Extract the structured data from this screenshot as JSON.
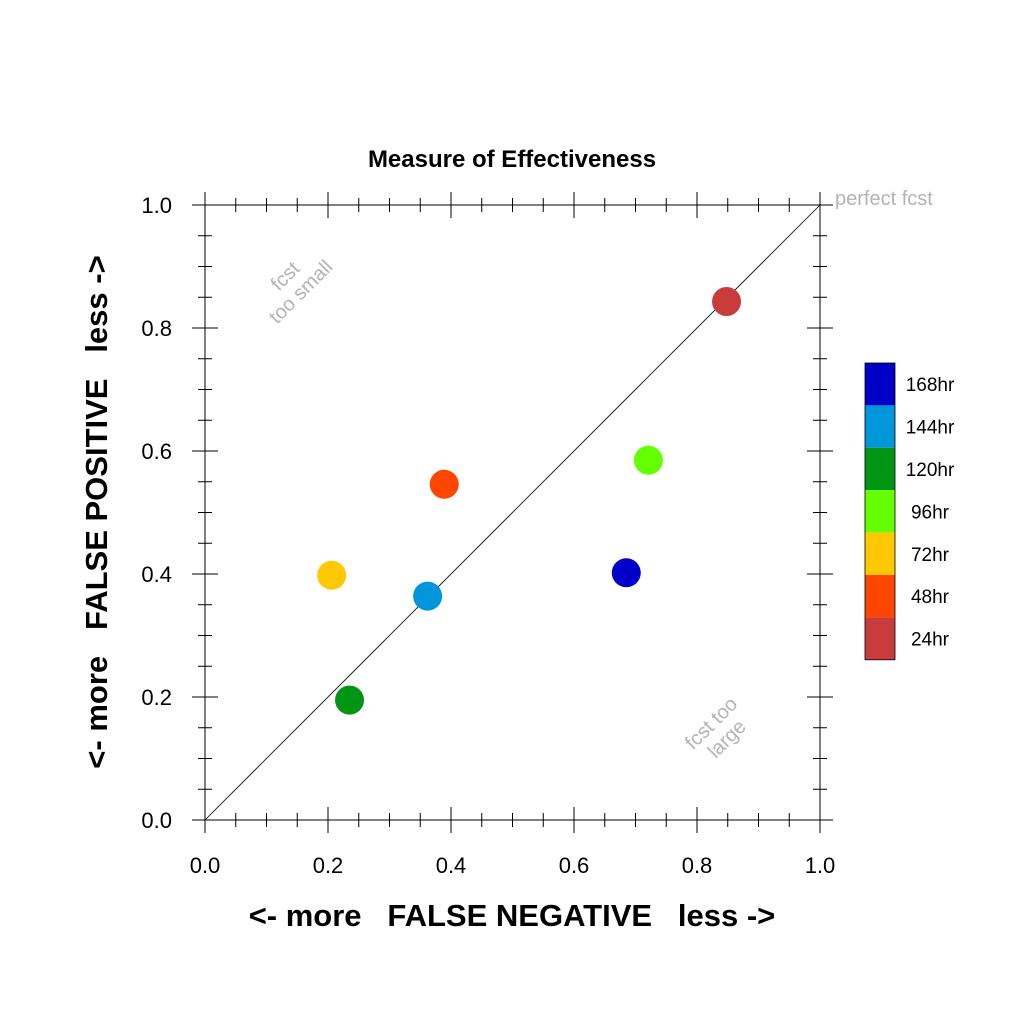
{
  "chart_data": {
    "type": "scatter",
    "title": "Measure of Effectiveness",
    "xlabel": "<- more   FALSE NEGATIVE   less ->",
    "ylabel": "<- more   FALSE POSITIVE   less ->",
    "xlim": [
      0.0,
      1.0
    ],
    "ylim": [
      0.0,
      1.0
    ],
    "x_ticks": [
      "0.0",
      "0.2",
      "0.4",
      "0.6",
      "0.8",
      "1.0"
    ],
    "y_ticks": [
      "0.0",
      "0.2",
      "0.4",
      "0.6",
      "0.8",
      "1.0"
    ],
    "grid": false,
    "reference_line": {
      "from": [
        0,
        0
      ],
      "to": [
        1,
        1
      ]
    },
    "annotations": {
      "perfect": "perfect fcst",
      "small_line1": "fcst",
      "small_line2": "too small",
      "large_line1": "fcst too",
      "large_line2": "large"
    },
    "legend_position": "right",
    "series": [
      {
        "name": "168hr",
        "color": "#0000c8",
        "x": 0.685,
        "y": 0.402
      },
      {
        "name": "144hr",
        "color": "#0096dc",
        "x": 0.362,
        "y": 0.364
      },
      {
        "name": "120hr",
        "color": "#009614",
        "x": 0.235,
        "y": 0.195
      },
      {
        "name": "96hr",
        "color": "#64ff00",
        "x": 0.721,
        "y": 0.585
      },
      {
        "name": "72hr",
        "color": "#ffc800",
        "x": 0.206,
        "y": 0.398
      },
      {
        "name": "48hr",
        "color": "#ff4600",
        "x": 0.389,
        "y": 0.546
      },
      {
        "name": "24hr",
        "color": "#c83c3c",
        "x": 0.848,
        "y": 0.843
      }
    ]
  }
}
